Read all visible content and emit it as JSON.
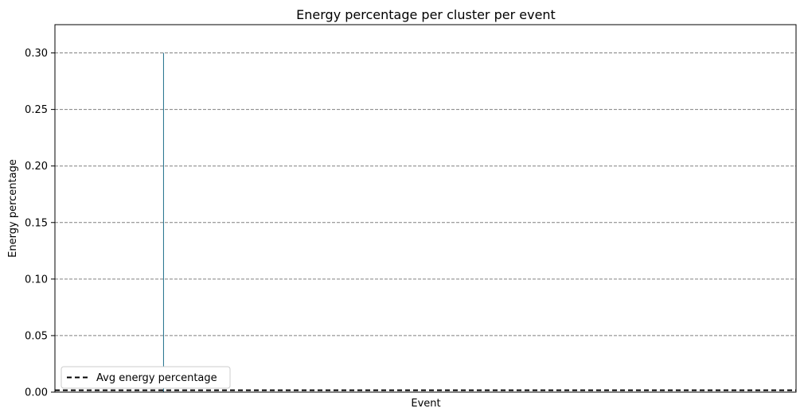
{
  "chart_data": {
    "type": "bar",
    "title": "Energy percentage per cluster per event",
    "xlabel": "Event",
    "ylabel": "Energy percentage",
    "ylim": [
      0,
      0.325
    ],
    "yticks": [
      0.0,
      0.05,
      0.1,
      0.15,
      0.2,
      0.25,
      0.3
    ],
    "ytick_labels": [
      "0.00",
      "0.05",
      "0.10",
      "0.15",
      "0.20",
      "0.25",
      "0.30"
    ],
    "grid": "y-dashed",
    "bars": [
      {
        "x_fraction": 0.146,
        "value": 0.3
      }
    ],
    "average_line": {
      "name": "Avg energy percentage",
      "value": 0.001,
      "style": "dashed",
      "color": "#000000"
    },
    "legend_position": "lower-left",
    "bar_color": "#1f6f8b",
    "grid_color": "#808080"
  }
}
